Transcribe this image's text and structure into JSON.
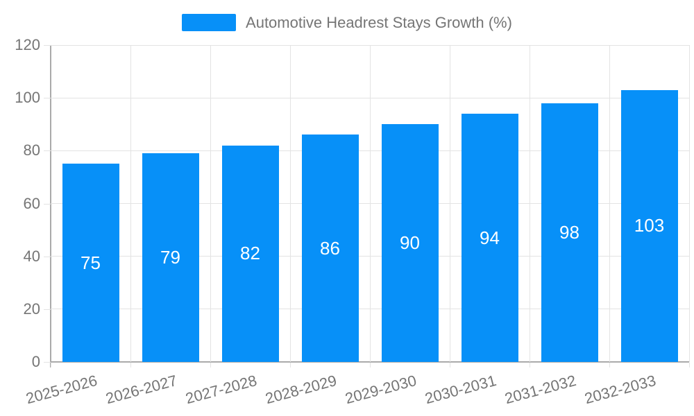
{
  "chart_data": {
    "type": "bar",
    "title": "Automotive Headrest Stays Growth (%)",
    "categories": [
      "2025-2026",
      "2026-2027",
      "2027-2028",
      "2028-2029",
      "2029-2030",
      "2030-2031",
      "2031-2032",
      "2032-2033"
    ],
    "values": [
      75,
      79,
      82,
      86,
      90,
      94,
      98,
      103
    ],
    "xlabel": "",
    "ylabel": "",
    "ylim": [
      0,
      120
    ],
    "yticks": [
      0,
      20,
      40,
      60,
      80,
      100,
      120
    ],
    "grid": true,
    "legend_position": "top-center",
    "x_tick_rotation_deg": -15,
    "bar_value_labels_inside": true,
    "colors": {
      "bar": "#0790f8",
      "value_label": "#ffffff",
      "axis": "#aaaaaa",
      "grid": "#e3e3e3",
      "tick_text": "#757575"
    }
  }
}
